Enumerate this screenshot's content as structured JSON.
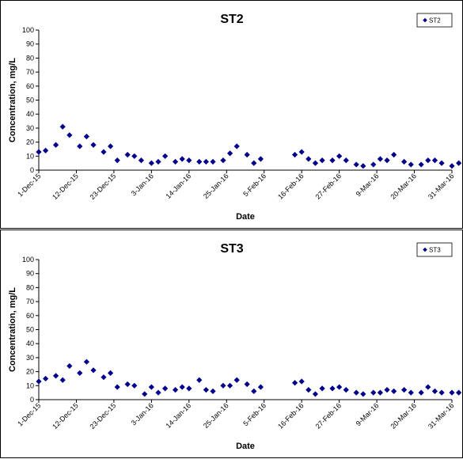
{
  "charts": [
    {
      "chart_data": {
        "type": "scatter",
        "title": "ST2",
        "xlabel": "Date",
        "ylabel": "Concentration, mg/L",
        "ylim": [
          0,
          100
        ],
        "ytick_step": 10,
        "xlim": [
          "2015-12-01",
          "2016-03-31"
        ],
        "xtick_labels": [
          "1-Dec-15",
          "12-Dec-15",
          "23-Dec-15",
          "3-Jan-16",
          "14-Jan-16",
          "25-Jan-16",
          "5-Feb-16",
          "16-Feb-16",
          "27-Feb-16",
          "9-Mar-16",
          "20-Mar-16",
          "31-Mar-16"
        ],
        "xtick_dates": [
          "2015-12-01",
          "2015-12-12",
          "2015-12-23",
          "2016-01-03",
          "2016-01-14",
          "2016-01-25",
          "2016-02-05",
          "2016-02-16",
          "2016-02-27",
          "2016-03-09",
          "2016-03-20",
          "2016-03-31"
        ],
        "grid": false,
        "legend_position": "top-right",
        "series": [
          {
            "name": "ST2",
            "color": "#00008b",
            "marker": "diamond",
            "points": [
              [
                "2015-12-01",
                13
              ],
              [
                "2015-12-03",
                14
              ],
              [
                "2015-12-06",
                18
              ],
              [
                "2015-12-08",
                31
              ],
              [
                "2015-12-10",
                25
              ],
              [
                "2015-12-13",
                17
              ],
              [
                "2015-12-15",
                24
              ],
              [
                "2015-12-17",
                18
              ],
              [
                "2015-12-20",
                13
              ],
              [
                "2015-12-22",
                17
              ],
              [
                "2015-12-24",
                7
              ],
              [
                "2015-12-27",
                11
              ],
              [
                "2015-12-29",
                10
              ],
              [
                "2015-12-31",
                7
              ],
              [
                "2016-01-03",
                5
              ],
              [
                "2016-01-05",
                6
              ],
              [
                "2016-01-07",
                10
              ],
              [
                "2016-01-10",
                6
              ],
              [
                "2016-01-12",
                8
              ],
              [
                "2016-01-14",
                7
              ],
              [
                "2016-01-17",
                6
              ],
              [
                "2016-01-19",
                6
              ],
              [
                "2016-01-21",
                6
              ],
              [
                "2016-01-24",
                7
              ],
              [
                "2016-01-26",
                12
              ],
              [
                "2016-01-28",
                17
              ],
              [
                "2016-01-31",
                11
              ],
              [
                "2016-02-02",
                5
              ],
              [
                "2016-02-04",
                8
              ],
              [
                "2016-02-14",
                11
              ],
              [
                "2016-02-16",
                13
              ],
              [
                "2016-02-18",
                8
              ],
              [
                "2016-02-20",
                5
              ],
              [
                "2016-02-22",
                7
              ],
              [
                "2016-02-25",
                7
              ],
              [
                "2016-02-27",
                10
              ],
              [
                "2016-02-29",
                7
              ],
              [
                "2016-03-03",
                4
              ],
              [
                "2016-03-05",
                3
              ],
              [
                "2016-03-08",
                4
              ],
              [
                "2016-03-10",
                8
              ],
              [
                "2016-03-12",
                7
              ],
              [
                "2016-03-14",
                11
              ],
              [
                "2016-03-17",
                6
              ],
              [
                "2016-03-19",
                4
              ],
              [
                "2016-03-22",
                4
              ],
              [
                "2016-03-24",
                7
              ],
              [
                "2016-03-26",
                7
              ],
              [
                "2016-03-28",
                5
              ],
              [
                "2016-03-31",
                3
              ],
              [
                "2016-04-02",
                5
              ]
            ]
          }
        ]
      }
    },
    {
      "chart_data": {
        "type": "scatter",
        "title": "ST3",
        "xlabel": "Date",
        "ylabel": "Concentration, mg/L",
        "ylim": [
          0,
          100
        ],
        "ytick_step": 10,
        "xlim": [
          "2015-12-01",
          "2016-03-31"
        ],
        "xtick_labels": [
          "1-Dec-15",
          "12-Dec-15",
          "23-Dec-15",
          "3-Jan-16",
          "14-Jan-16",
          "25-Jan-16",
          "5-Feb-16",
          "16-Feb-16",
          "27-Feb-16",
          "9-Mar-16",
          "20-Mar-16",
          "31-Mar-16"
        ],
        "xtick_dates": [
          "2015-12-01",
          "2015-12-12",
          "2015-12-23",
          "2016-01-03",
          "2016-01-14",
          "2016-01-25",
          "2016-02-05",
          "2016-02-16",
          "2016-02-27",
          "2016-03-09",
          "2016-03-20",
          "2016-03-31"
        ],
        "grid": false,
        "legend_position": "top-right",
        "series": [
          {
            "name": "ST3",
            "color": "#00008b",
            "marker": "diamond",
            "points": [
              [
                "2015-12-01",
                13
              ],
              [
                "2015-12-03",
                15
              ],
              [
                "2015-12-06",
                17
              ],
              [
                "2015-12-08",
                14
              ],
              [
                "2015-12-10",
                24
              ],
              [
                "2015-12-13",
                19
              ],
              [
                "2015-12-15",
                27
              ],
              [
                "2015-12-17",
                21
              ],
              [
                "2015-12-20",
                16
              ],
              [
                "2015-12-22",
                19
              ],
              [
                "2015-12-24",
                9
              ],
              [
                "2015-12-27",
                11
              ],
              [
                "2015-12-29",
                10
              ],
              [
                "2016-01-01",
                4
              ],
              [
                "2016-01-03",
                9
              ],
              [
                "2016-01-05",
                5
              ],
              [
                "2016-01-07",
                8
              ],
              [
                "2016-01-10",
                7
              ],
              [
                "2016-01-12",
                9
              ],
              [
                "2016-01-14",
                8
              ],
              [
                "2016-01-17",
                14
              ],
              [
                "2016-01-19",
                7
              ],
              [
                "2016-01-21",
                6
              ],
              [
                "2016-01-24",
                10
              ],
              [
                "2016-01-26",
                10
              ],
              [
                "2016-01-28",
                14
              ],
              [
                "2016-01-31",
                11
              ],
              [
                "2016-02-02",
                6
              ],
              [
                "2016-02-04",
                9
              ],
              [
                "2016-02-14",
                12
              ],
              [
                "2016-02-16",
                13
              ],
              [
                "2016-02-18",
                7
              ],
              [
                "2016-02-20",
                4
              ],
              [
                "2016-02-22",
                8
              ],
              [
                "2016-02-25",
                8
              ],
              [
                "2016-02-27",
                9
              ],
              [
                "2016-02-29",
                7
              ],
              [
                "2016-03-03",
                5
              ],
              [
                "2016-03-05",
                4
              ],
              [
                "2016-03-08",
                5
              ],
              [
                "2016-03-10",
                5
              ],
              [
                "2016-03-12",
                7
              ],
              [
                "2016-03-14",
                6
              ],
              [
                "2016-03-17",
                7
              ],
              [
                "2016-03-19",
                5
              ],
              [
                "2016-03-22",
                5
              ],
              [
                "2016-03-24",
                9
              ],
              [
                "2016-03-26",
                6
              ],
              [
                "2016-03-28",
                5
              ],
              [
                "2016-03-31",
                5
              ],
              [
                "2016-04-02",
                5
              ]
            ]
          }
        ]
      }
    }
  ]
}
